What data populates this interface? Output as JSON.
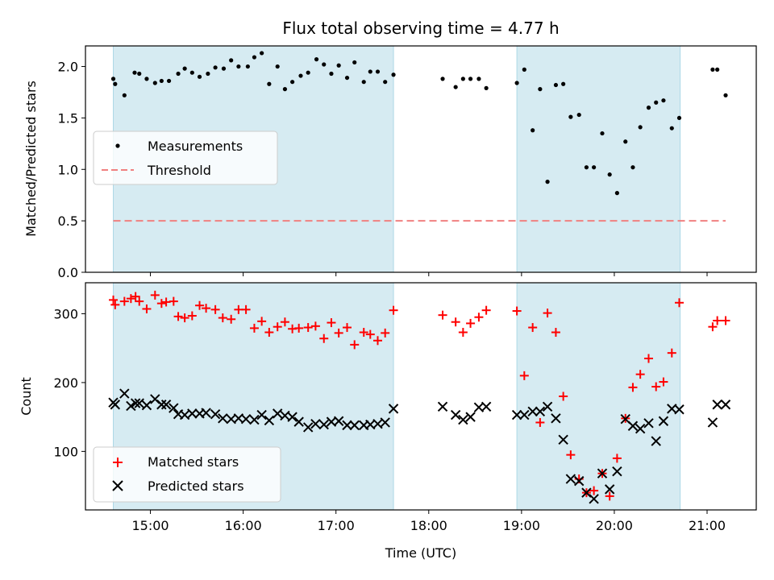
{
  "chart_data": [
    {
      "type": "scatter",
      "title": "Flux total observing time = 4.77 h",
      "xlabel": "",
      "ylabel": "Matched/Predicted stars",
      "ylim": [
        0,
        2.2
      ],
      "yticks": [
        "0.0",
        "0.5",
        "1.0",
        "1.5",
        "2.0"
      ],
      "xlim_hours": [
        14.3,
        21.53
      ],
      "shaded_intervals_hours": [
        [
          14.6,
          17.62
        ],
        [
          18.95,
          20.71
        ]
      ],
      "shade_color": "#add8e6",
      "legend_position": "center-left",
      "series": [
        {
          "name": "Measurements",
          "marker": "dot",
          "color": "#000000",
          "x": [
            14.6,
            14.62,
            14.72,
            14.83,
            14.88,
            14.96,
            15.05,
            15.12,
            15.2,
            15.3,
            15.37,
            15.45,
            15.53,
            15.62,
            15.7,
            15.79,
            15.87,
            15.95,
            16.05,
            16.12,
            16.2,
            16.28,
            16.37,
            16.45,
            16.53,
            16.62,
            16.7,
            16.79,
            16.87,
            16.95,
            17.03,
            17.12,
            17.2,
            17.3,
            17.37,
            17.45,
            17.53,
            17.62,
            18.15,
            18.29,
            18.37,
            18.45,
            18.54,
            18.62,
            18.95,
            19.03,
            19.12,
            19.2,
            19.28,
            19.37,
            19.45,
            19.53,
            19.62,
            19.7,
            19.78,
            19.87,
            19.95,
            20.03,
            20.12,
            20.2,
            20.28,
            20.37,
            20.45,
            20.53,
            20.62,
            20.7,
            21.06,
            21.11,
            21.2
          ],
          "y": [
            1.88,
            1.83,
            1.72,
            1.94,
            1.93,
            1.88,
            1.84,
            1.86,
            1.86,
            1.93,
            1.98,
            1.94,
            1.9,
            1.93,
            1.99,
            1.98,
            2.06,
            2.0,
            2.0,
            2.09,
            2.13,
            1.83,
            2.0,
            1.78,
            1.85,
            1.91,
            1.94,
            2.07,
            2.02,
            1.93,
            2.01,
            1.89,
            2.04,
            1.85,
            1.95,
            1.95,
            1.85,
            1.92,
            1.88,
            1.8,
            1.88,
            1.88,
            1.88,
            1.79,
            1.84,
            1.97,
            1.38,
            1.78,
            0.88,
            1.82,
            1.83,
            1.51,
            1.53,
            1.02,
            1.02,
            1.35,
            0.95,
            0.77,
            1.27,
            1.02,
            1.41,
            1.6,
            1.65,
            1.67,
            1.4,
            1.5,
            1.97,
            1.97,
            1.72
          ]
        },
        {
          "name": "Threshold",
          "marker": "dashed-line",
          "color": "#f08080",
          "x": [
            14.6,
            21.2
          ],
          "y": [
            0.5,
            0.5
          ]
        }
      ]
    },
    {
      "type": "scatter",
      "title": "",
      "xlabel": "Time (UTC)",
      "ylabel": "Count",
      "ylim": [
        15,
        345
      ],
      "yticks": [
        "100",
        "200",
        "300"
      ],
      "xticks": [
        "15:00",
        "16:00",
        "17:00",
        "18:00",
        "19:00",
        "20:00",
        "21:00"
      ],
      "xlim_hours": [
        14.3,
        21.53
      ],
      "shaded_intervals_hours": [
        [
          14.6,
          17.62
        ],
        [
          18.95,
          20.71
        ]
      ],
      "shade_color": "#add8e6",
      "legend_position": "lower-left",
      "series": [
        {
          "name": "Matched stars",
          "marker": "plus",
          "color": "#ff0000",
          "x": [
            14.6,
            14.62,
            14.72,
            14.79,
            14.84,
            14.88,
            14.96,
            15.05,
            15.12,
            15.17,
            15.25,
            15.3,
            15.37,
            15.45,
            15.53,
            15.6,
            15.7,
            15.78,
            15.87,
            15.95,
            16.03,
            16.12,
            16.2,
            16.28,
            16.37,
            16.45,
            16.53,
            16.6,
            16.7,
            16.78,
            16.87,
            16.95,
            17.03,
            17.12,
            17.2,
            17.3,
            17.37,
            17.45,
            17.53,
            17.62,
            18.15,
            18.29,
            18.37,
            18.45,
            18.54,
            18.62,
            18.95,
            19.03,
            19.12,
            19.2,
            19.28,
            19.37,
            19.45,
            19.53,
            19.62,
            19.7,
            19.78,
            19.87,
            19.95,
            20.03,
            20.12,
            20.2,
            20.28,
            20.37,
            20.45,
            20.53,
            20.62,
            20.7,
            21.06,
            21.11,
            21.2
          ],
          "y": [
            320,
            313,
            318,
            322,
            325,
            318,
            307,
            327,
            315,
            317,
            318,
            296,
            294,
            297,
            312,
            308,
            306,
            294,
            292,
            306,
            306,
            279,
            289,
            273,
            281,
            288,
            278,
            279,
            280,
            282,
            264,
            287,
            272,
            280,
            255,
            273,
            270,
            261,
            272,
            305,
            298,
            288,
            273,
            286,
            295,
            305,
            304,
            210,
            280,
            142,
            301,
            273,
            180,
            95,
            60,
            40,
            43,
            68,
            35,
            90,
            148,
            193,
            212,
            235,
            194,
            201,
            243,
            316,
            281,
            290,
            290
          ]
        },
        {
          "name": "Predicted stars",
          "marker": "x",
          "color": "#000000",
          "x": [
            14.6,
            14.62,
            14.72,
            14.79,
            14.84,
            14.88,
            14.96,
            15.05,
            15.12,
            15.17,
            15.25,
            15.3,
            15.37,
            15.45,
            15.53,
            15.6,
            15.7,
            15.78,
            15.87,
            15.95,
            16.03,
            16.12,
            16.2,
            16.28,
            16.37,
            16.45,
            16.53,
            16.6,
            16.7,
            16.78,
            16.87,
            16.95,
            17.03,
            17.12,
            17.2,
            17.3,
            17.37,
            17.45,
            17.53,
            17.62,
            18.15,
            18.29,
            18.37,
            18.45,
            18.54,
            18.62,
            18.95,
            19.03,
            19.12,
            19.2,
            19.28,
            19.37,
            19.45,
            19.53,
            19.62,
            19.7,
            19.78,
            19.87,
            19.95,
            20.03,
            20.12,
            20.2,
            20.28,
            20.37,
            20.45,
            20.53,
            20.62,
            20.7,
            21.06,
            21.11,
            21.2
          ],
          "y": [
            171,
            168,
            184,
            166,
            170,
            170,
            167,
            176,
            168,
            168,
            163,
            154,
            153,
            155,
            155,
            156,
            154,
            148,
            147,
            148,
            147,
            146,
            153,
            145,
            155,
            152,
            150,
            143,
            135,
            140,
            139,
            143,
            144,
            138,
            138,
            138,
            139,
            140,
            142,
            162,
            165,
            153,
            146,
            150,
            164,
            165,
            153,
            153,
            158,
            158,
            165,
            148,
            117,
            60,
            57,
            40,
            31,
            68,
            45,
            71,
            147,
            137,
            133,
            141,
            115,
            144,
            162,
            161,
            142,
            168,
            168
          ]
        }
      ]
    }
  ]
}
